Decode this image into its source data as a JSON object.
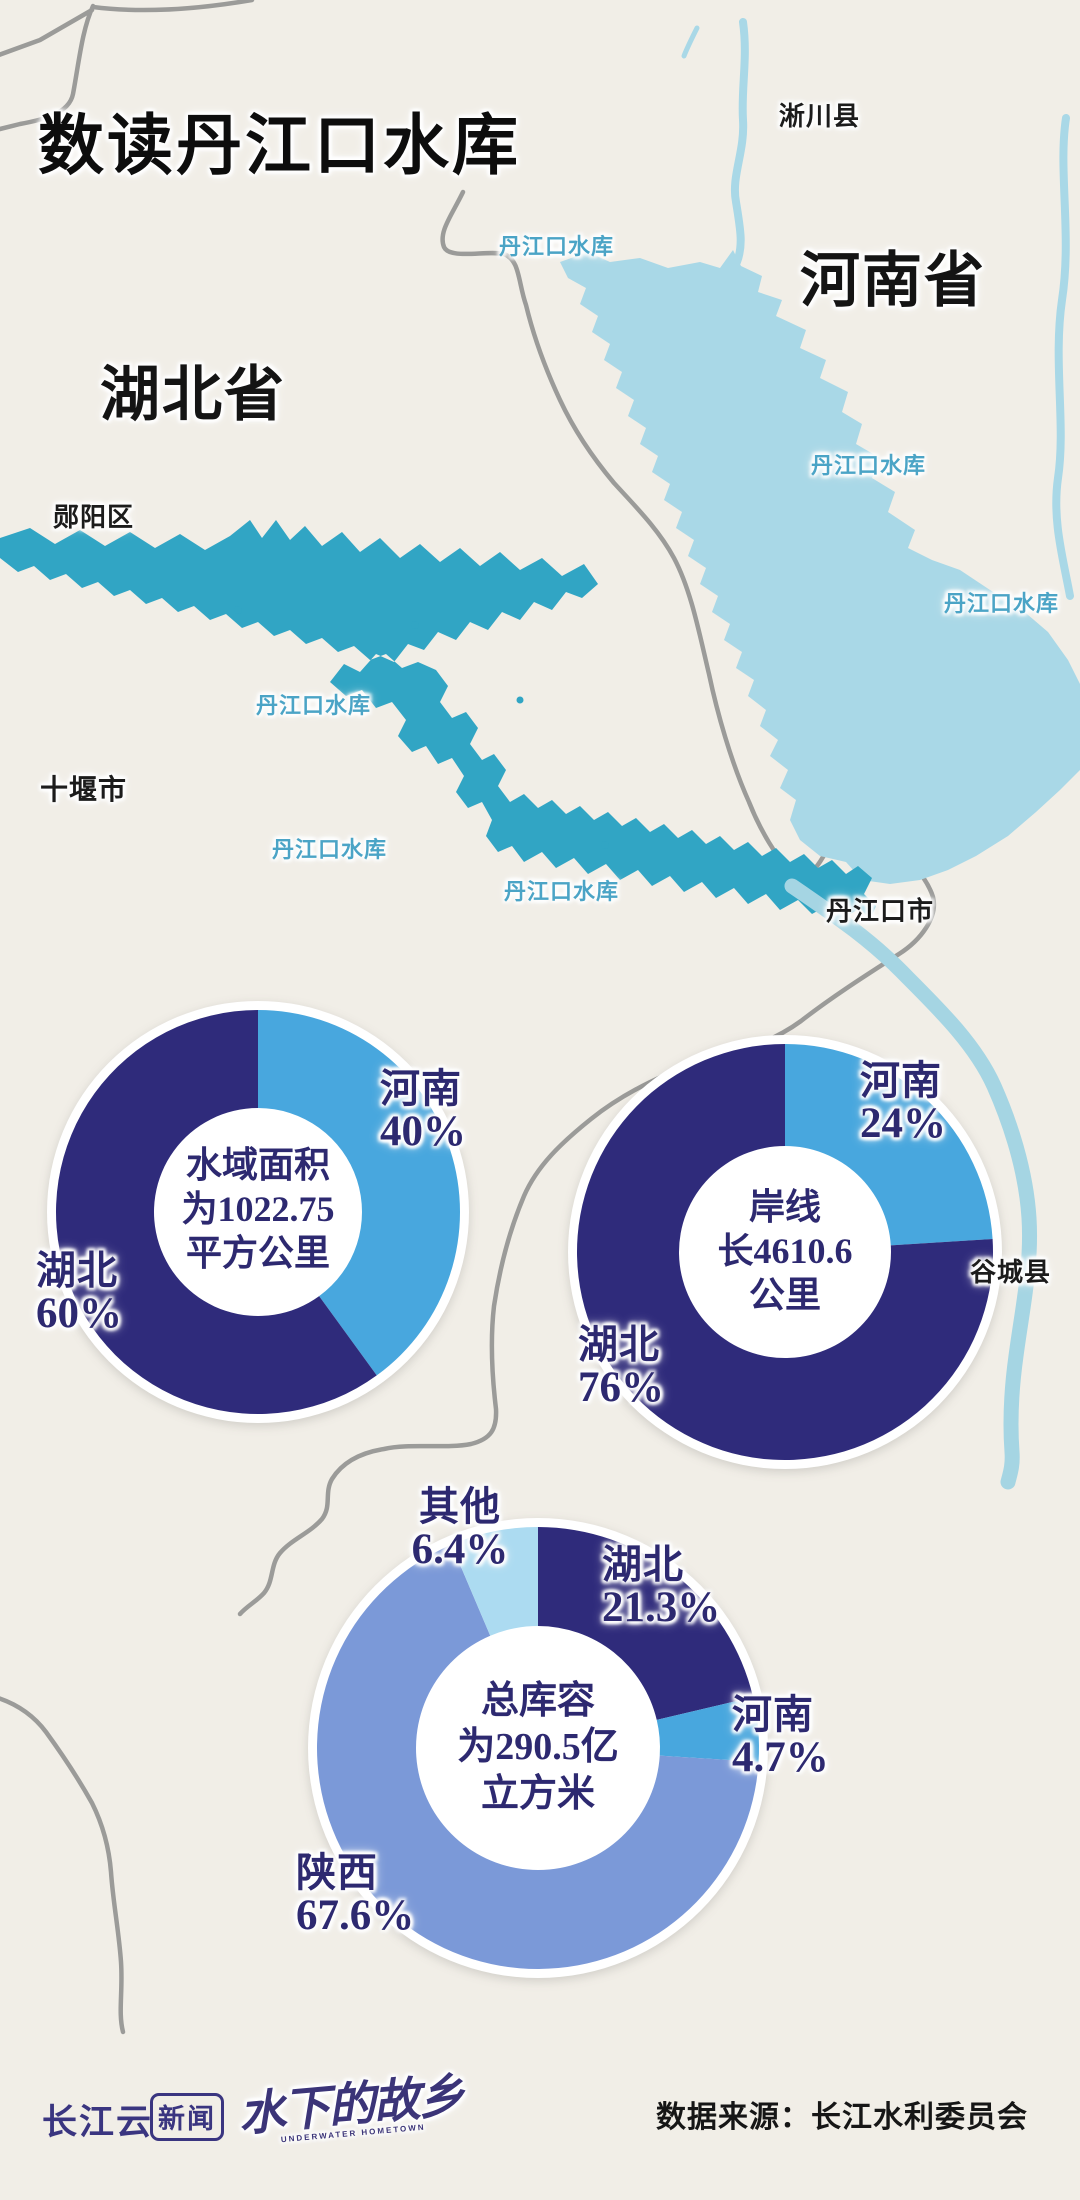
{
  "title": "数读丹江口水库",
  "map": {
    "province_labels": [
      {
        "text": "河南省"
      },
      {
        "text": "湖北省"
      }
    ],
    "place_labels": [
      {
        "text": "淅川县"
      },
      {
        "text": "郧阳区"
      },
      {
        "text": "十堰市"
      },
      {
        "text": "丹江口市"
      },
      {
        "text": "谷城县"
      }
    ],
    "water_labels": [
      {
        "text": "丹江口水库"
      },
      {
        "text": "丹江口水库"
      },
      {
        "text": "丹江口水库"
      },
      {
        "text": "丹江口水库"
      },
      {
        "text": "丹江口水库"
      },
      {
        "text": "丹江口水库"
      }
    ],
    "water_color_hubei": "#31A5C4",
    "water_color_henan": "#A9D8E7",
    "border_color": "#9B9B99"
  },
  "chart_data": [
    {
      "type": "pie",
      "donut": true,
      "title": "水域面积为1022.75平方公里",
      "center_lines": [
        "水域面积",
        "为1022.75",
        "平方公里"
      ],
      "start": "top",
      "direction": "clockwise",
      "slices": [
        {
          "name": "河南",
          "value": 40,
          "pct_label": "40%",
          "color": "#48A7DE"
        },
        {
          "name": "湖北",
          "value": 60,
          "pct_label": "60%",
          "color": "#2F2B7B"
        }
      ]
    },
    {
      "type": "pie",
      "donut": true,
      "title": "岸线长4610.6公里",
      "center_lines": [
        "岸线",
        "长4610.6",
        "公里"
      ],
      "start": "top",
      "direction": "clockwise",
      "slices": [
        {
          "name": "河南",
          "value": 24,
          "pct_label": "24%",
          "color": "#48A7DE"
        },
        {
          "name": "湖北",
          "value": 76,
          "pct_label": "76%",
          "color": "#2F2B7B"
        }
      ]
    },
    {
      "type": "pie",
      "donut": true,
      "title": "总库容为290.5亿立方米",
      "center_lines": [
        "总库容",
        "为290.5亿",
        "立方米"
      ],
      "start": "top",
      "direction": "clockwise",
      "slices": [
        {
          "name": "湖北",
          "value": 21.3,
          "pct_label": "21.3%",
          "color": "#2F2B7B"
        },
        {
          "name": "河南",
          "value": 4.7,
          "pct_label": "4.7%",
          "color": "#48A7DE"
        },
        {
          "name": "陕西",
          "value": 67.6,
          "pct_label": "67.6%",
          "color": "#7B99D8"
        },
        {
          "name": "其他",
          "value": 6.4,
          "pct_label": "6.4%",
          "color": "#ACDBF1"
        }
      ]
    }
  ],
  "footer": {
    "brand": "长江云",
    "brand_badge": "新闻",
    "logo_text": "水下的故乡",
    "logo_caption": "UNDERWATER HOMETOWN",
    "source": "数据来源：长江水利委员会"
  }
}
